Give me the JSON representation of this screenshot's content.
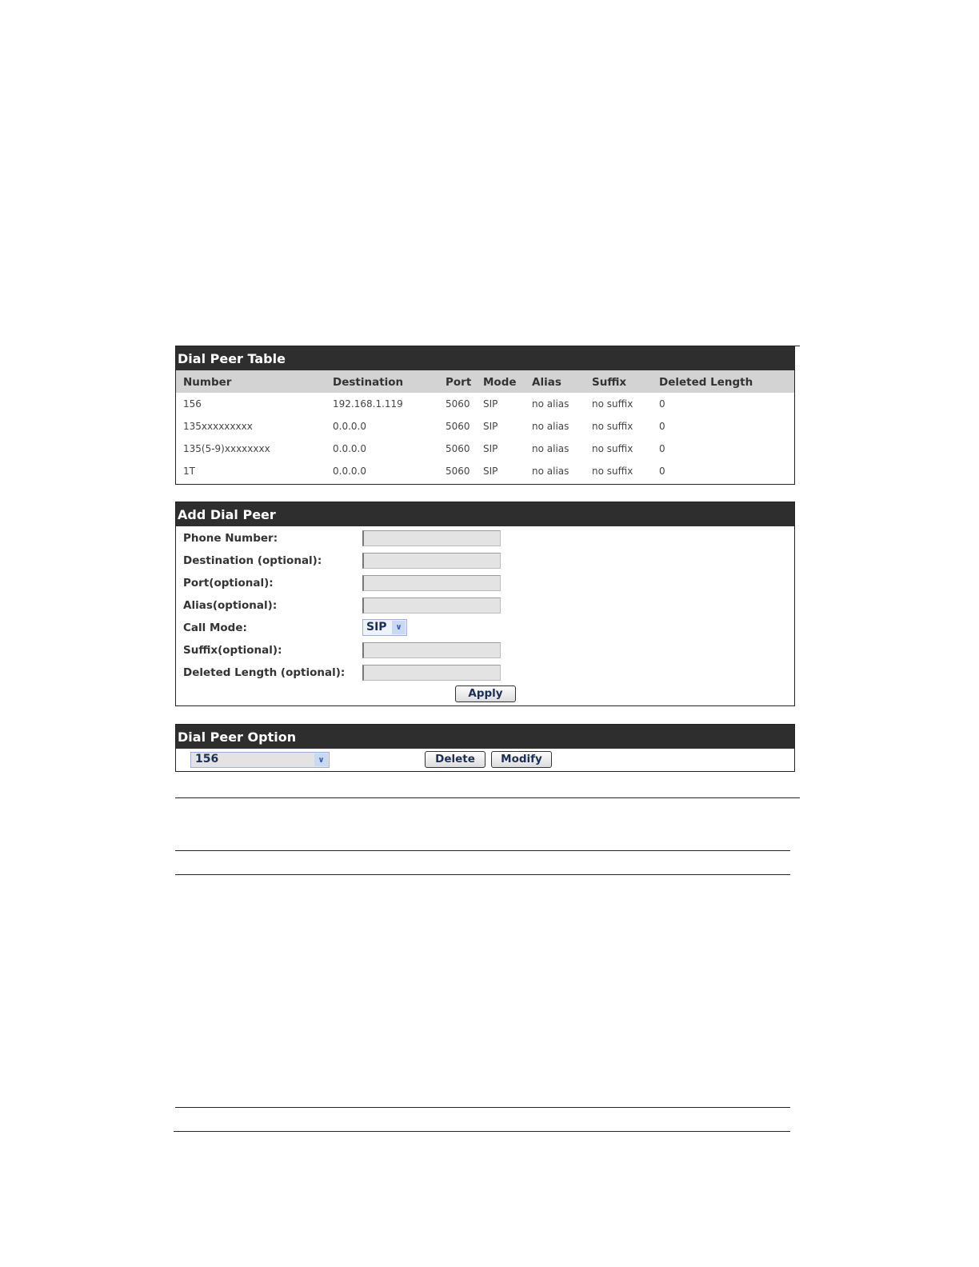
{
  "dial_peer_table": {
    "title": "Dial Peer Table",
    "columns": [
      "Number",
      "Destination",
      "Port",
      "Mode",
      "Alias",
      "Suffix",
      "Deleted Length"
    ],
    "rows": [
      [
        "156",
        "192.168.1.119",
        "5060",
        "SIP",
        "no alias",
        "no suffix",
        "0"
      ],
      [
        "135xxxxxxxxx",
        "0.0.0.0",
        "5060",
        "SIP",
        "no alias",
        "no suffix",
        "0"
      ],
      [
        "135(5-9)xxxxxxxx",
        "0.0.0.0",
        "5060",
        "SIP",
        "no alias",
        "no suffix",
        "0"
      ],
      [
        "1T",
        "0.0.0.0",
        "5060",
        "SIP",
        "no alias",
        "no suffix",
        "0"
      ]
    ]
  },
  "add_dial_peer": {
    "title": "Add Dial Peer",
    "phone_number_label": "Phone Number:",
    "destination_label": "Destination (optional):",
    "port_label": "Port(optional):",
    "alias_label": "Alias(optional):",
    "call_mode_label": "Call Mode:",
    "call_mode_value": "SIP",
    "suffix_label": "Suffix(optional):",
    "deleted_length_label": "Deleted Length (optional):",
    "apply_label": "Apply"
  },
  "dial_peer_option": {
    "title": "Dial Peer Option",
    "selected": "156",
    "delete_label": "Delete",
    "modify_label": "Modify"
  }
}
